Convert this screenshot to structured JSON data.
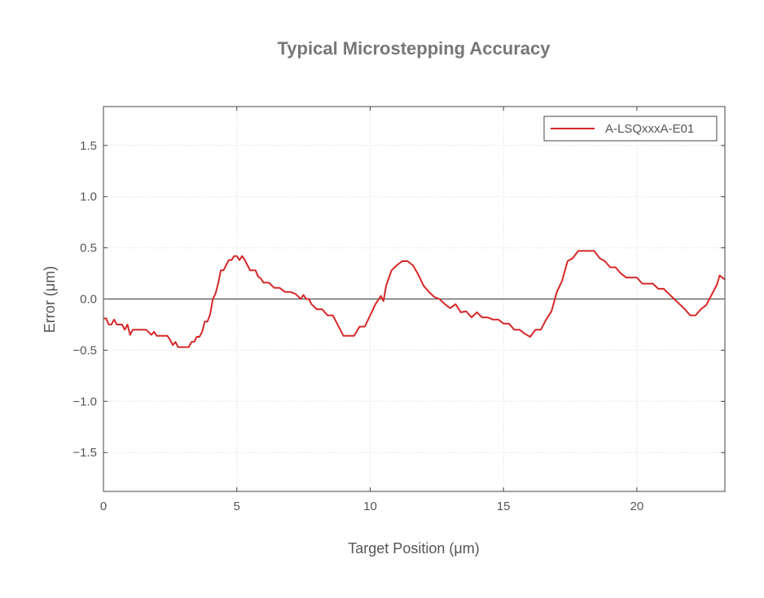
{
  "chart_data": {
    "type": "line",
    "title": "Typical Microstepping Accuracy",
    "xlabel": "Target Position (μm)",
    "ylabel": "Error (μm)",
    "xlim": [
      0,
      23.3
    ],
    "ylim": [
      -1.88,
      1.88
    ],
    "xticks": [
      0,
      5,
      10,
      15,
      20
    ],
    "xtick_labels": [
      "0",
      "5",
      "10",
      "15",
      "20"
    ],
    "yticks": [
      1.5,
      1.0,
      0.5,
      0.0,
      -0.5,
      -1.0,
      -1.5
    ],
    "ytick_labels": [
      "1.5",
      "1.0",
      "0.5",
      "0.0",
      "−0.5",
      "−1.0",
      "−1.5"
    ],
    "grid": true,
    "zero_line": true,
    "legend_position": "top-right",
    "series": [
      {
        "name": "A-LSQxxxA-E01",
        "color": "#d62728",
        "x": [
          0.0,
          0.1,
          0.2,
          0.3,
          0.4,
          0.5,
          0.6,
          0.7,
          0.8,
          0.9,
          1.0,
          1.1,
          1.2,
          1.4,
          1.6,
          1.8,
          1.9,
          2.0,
          2.1,
          2.2,
          2.4,
          2.5,
          2.6,
          2.7,
          2.8,
          2.9,
          3.0,
          3.2,
          3.3,
          3.4,
          3.5,
          3.6,
          3.7,
          3.8,
          3.9,
          4.0,
          4.1,
          4.2,
          4.3,
          4.4,
          4.5,
          4.6,
          4.7,
          4.8,
          4.9,
          5.0,
          5.1,
          5.2,
          5.3,
          5.4,
          5.5,
          5.6,
          5.7,
          5.8,
          5.9,
          6.0,
          6.2,
          6.4,
          6.6,
          6.8,
          7.0,
          7.2,
          7.4,
          7.5,
          7.6,
          7.7,
          7.8,
          8.0,
          8.2,
          8.4,
          8.6,
          8.8,
          9.0,
          9.2,
          9.4,
          9.6,
          9.8,
          10.0,
          10.2,
          10.4,
          10.5,
          10.6,
          10.8,
          11.0,
          11.2,
          11.4,
          11.6,
          11.8,
          12.0,
          12.2,
          12.4,
          12.6,
          12.8,
          13.0,
          13.2,
          13.4,
          13.6,
          13.8,
          14.0,
          14.2,
          14.4,
          14.6,
          14.8,
          15.0,
          15.2,
          15.4,
          15.6,
          15.8,
          16.0,
          16.2,
          16.4,
          16.6,
          16.8,
          17.0,
          17.2,
          17.4,
          17.6,
          17.8,
          18.0,
          18.2,
          18.4,
          18.6,
          18.8,
          19.0,
          19.2,
          19.4,
          19.6,
          19.8,
          20.0,
          20.2,
          20.4,
          20.6,
          20.8,
          21.0,
          21.2,
          21.4,
          21.6,
          21.8,
          22.0,
          22.2,
          22.4,
          22.6,
          22.8,
          23.0,
          23.1,
          23.3
        ],
        "y": [
          -0.19,
          -0.19,
          -0.25,
          -0.25,
          -0.2,
          -0.25,
          -0.25,
          -0.25,
          -0.3,
          -0.25,
          -0.35,
          -0.3,
          -0.3,
          -0.3,
          -0.3,
          -0.35,
          -0.32,
          -0.36,
          -0.36,
          -0.36,
          -0.36,
          -0.4,
          -0.45,
          -0.42,
          -0.47,
          -0.47,
          -0.47,
          -0.47,
          -0.42,
          -0.42,
          -0.37,
          -0.37,
          -0.32,
          -0.22,
          -0.22,
          -0.15,
          0.0,
          0.05,
          0.15,
          0.28,
          0.28,
          0.33,
          0.38,
          0.38,
          0.42,
          0.42,
          0.38,
          0.42,
          0.38,
          0.33,
          0.28,
          0.28,
          0.28,
          0.22,
          0.2,
          0.16,
          0.16,
          0.11,
          0.11,
          0.07,
          0.07,
          0.05,
          0.0,
          0.04,
          0.0,
          0.0,
          -0.05,
          -0.1,
          -0.1,
          -0.16,
          -0.16,
          -0.26,
          -0.36,
          -0.36,
          -0.36,
          -0.27,
          -0.27,
          -0.16,
          -0.05,
          0.03,
          -0.02,
          0.13,
          0.28,
          0.33,
          0.37,
          0.37,
          0.33,
          0.24,
          0.13,
          0.07,
          0.02,
          0.0,
          -0.05,
          -0.09,
          -0.05,
          -0.13,
          -0.12,
          -0.18,
          -0.13,
          -0.18,
          -0.18,
          -0.2,
          -0.2,
          -0.24,
          -0.24,
          -0.3,
          -0.3,
          -0.34,
          -0.37,
          -0.3,
          -0.3,
          -0.2,
          -0.12,
          0.07,
          0.18,
          0.37,
          0.4,
          0.47,
          0.47,
          0.47,
          0.47,
          0.4,
          0.37,
          0.31,
          0.31,
          0.25,
          0.21,
          0.21,
          0.21,
          0.15,
          0.15,
          0.15,
          0.1,
          0.1,
          0.05,
          0.0,
          -0.05,
          -0.1,
          -0.16,
          -0.16,
          -0.1,
          -0.06,
          0.04,
          0.14,
          0.23,
          0.19
        ]
      }
    ]
  }
}
